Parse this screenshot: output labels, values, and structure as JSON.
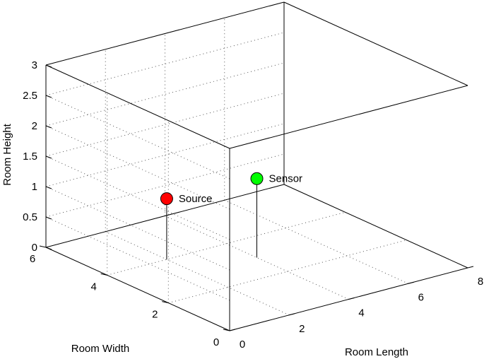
{
  "chart_data": {
    "type": "scatter3d",
    "title": "",
    "xlabel": "Room Length",
    "ylabel": "Room Width",
    "zlabel": "Room Height",
    "xlim": [
      0,
      8
    ],
    "ylim": [
      0,
      6
    ],
    "zlim": [
      0,
      3
    ],
    "x_ticks": [
      "0",
      "2",
      "4",
      "6",
      "8"
    ],
    "y_ticks": [
      "0",
      "2",
      "4",
      "6"
    ],
    "z_ticks": [
      "0",
      "0.5",
      "1",
      "1.5",
      "2",
      "2.5",
      "3"
    ],
    "grid": true,
    "points": [
      {
        "label": "Source",
        "x": 2.0,
        "y": 4.0,
        "z": 1.0,
        "color": "#ff0000"
      },
      {
        "label": "Sensor",
        "x": 4.0,
        "y": 3.0,
        "z": 1.3,
        "color": "#00ff00"
      }
    ]
  }
}
